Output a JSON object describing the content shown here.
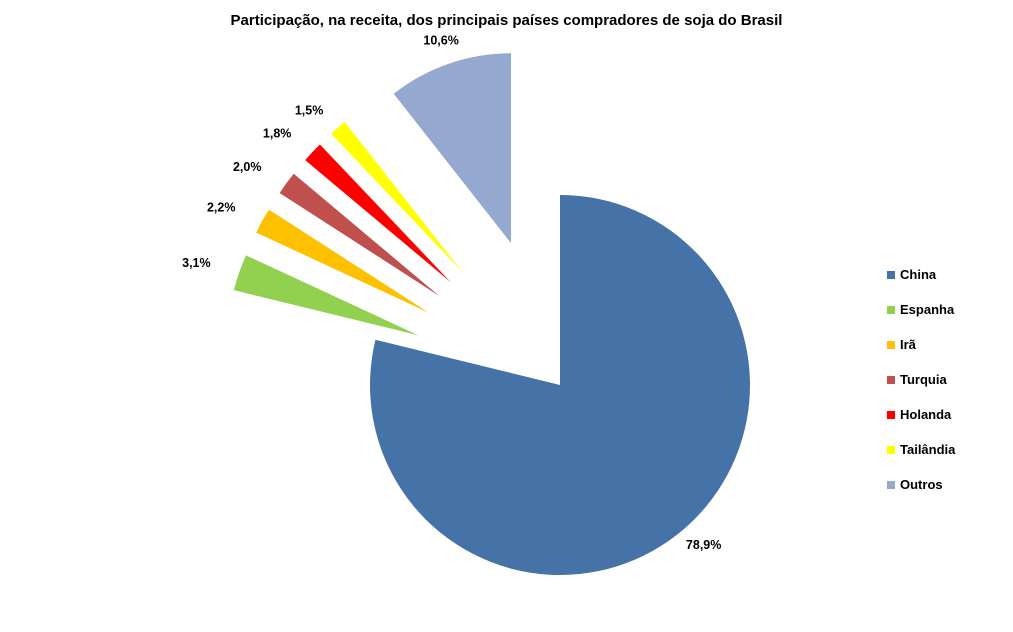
{
  "chart_data": {
    "type": "pie",
    "title": "Participação, na receita, dos principais países compradores de soja do Brasil",
    "slices": [
      {
        "name": "China",
        "value": 78.9,
        "label": "78,9%",
        "color": "#4572A7"
      },
      {
        "name": "Espanha",
        "value": 3.1,
        "label": "3,1%",
        "color": "#92D050"
      },
      {
        "name": "Irã",
        "value": 2.2,
        "label": "2,2%",
        "color": "#FFC000"
      },
      {
        "name": "Turquia",
        "value": 2.0,
        "label": "2,0%",
        "color": "#C0504D"
      },
      {
        "name": "Holanda",
        "value": 1.8,
        "label": "1,8%",
        "color": "#FF0000"
      },
      {
        "name": "Tailândia",
        "value": 1.5,
        "label": "1,5%",
        "color": "#FFFF00"
      },
      {
        "name": "Outros",
        "value": 10.6,
        "label": "10,6%",
        "color": "#95A9D0"
      }
    ],
    "exploded": [
      "Espanha",
      "Irã",
      "Turquia",
      "Holanda",
      "Tailândia",
      "Outros"
    ],
    "legend_position": "right"
  }
}
